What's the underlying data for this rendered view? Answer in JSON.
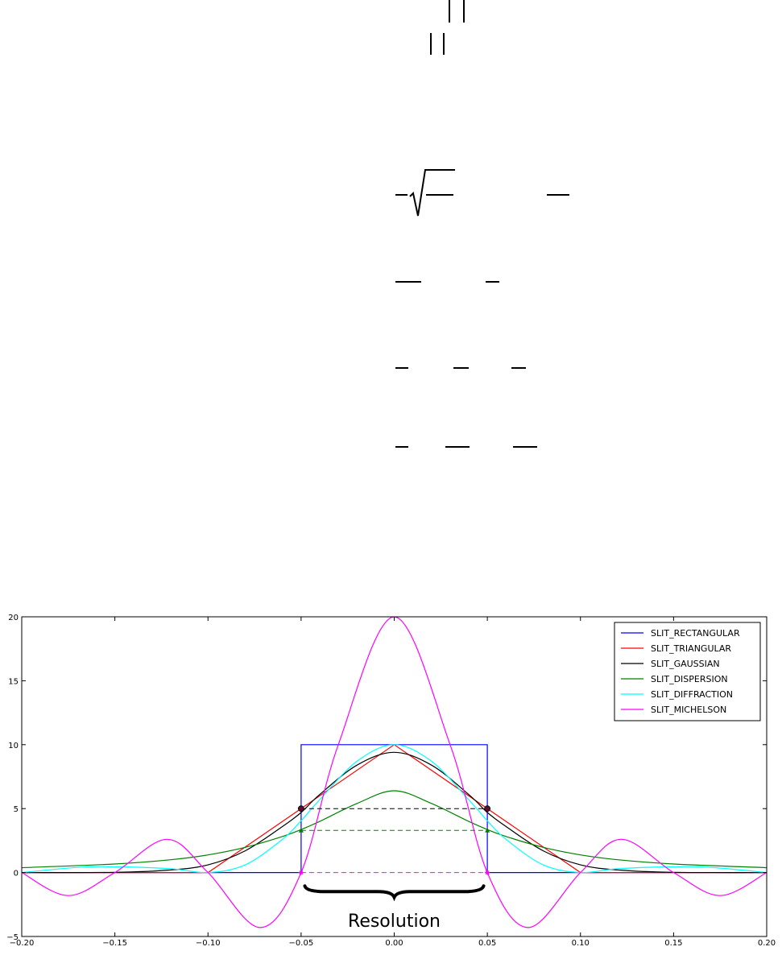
{
  "chart_data": {
    "type": "line",
    "title": "",
    "xlabel": "",
    "ylabel": "",
    "xlim": [
      -0.2,
      0.2
    ],
    "ylim": [
      -5,
      20
    ],
    "xticks": [
      "-0.20",
      "-0.15",
      "-0.10",
      "-0.05",
      "0.00",
      "0.05",
      "0.10",
      "0.15",
      "0.20"
    ],
    "yticks": [
      "-5",
      "0",
      "5",
      "10",
      "15",
      "20"
    ],
    "grid": false,
    "legend_position": "top-right",
    "series": [
      {
        "name": "SLIT_RECTANGULAR",
        "color": "#0000ff",
        "x": [
          -0.2,
          -0.05,
          -0.05,
          0.05,
          0.05,
          0.2
        ],
        "y": [
          0,
          0,
          10,
          10,
          0,
          0
        ]
      },
      {
        "name": "SLIT_TRIANGULAR",
        "color": "#ff0000",
        "x": [
          -0.2,
          -0.1,
          0.0,
          0.1,
          0.2
        ],
        "y": [
          0,
          0,
          10,
          0,
          0
        ]
      },
      {
        "name": "SLIT_GAUSSIAN",
        "color": "#000000",
        "x": [
          -0.2,
          -0.15,
          -0.12,
          -0.1,
          -0.08,
          -0.06,
          -0.05,
          -0.04,
          -0.02,
          0.0,
          0.02,
          0.04,
          0.05,
          0.06,
          0.08,
          0.1,
          0.12,
          0.15,
          0.2
        ],
        "y": [
          0.0,
          0.02,
          0.2,
          0.6,
          1.7,
          3.6,
          4.7,
          6.1,
          8.4,
          9.4,
          8.4,
          6.1,
          4.7,
          3.6,
          1.7,
          0.6,
          0.2,
          0.02,
          0.0
        ]
      },
      {
        "name": "SLIT_DISPERSION",
        "color": "#008000",
        "x": [
          -0.2,
          -0.15,
          -0.12,
          -0.1,
          -0.08,
          -0.06,
          -0.05,
          -0.04,
          -0.02,
          0.0,
          0.02,
          0.04,
          0.05,
          0.06,
          0.08,
          0.1,
          0.12,
          0.15,
          0.2
        ],
        "y": [
          0.38,
          0.67,
          1.0,
          1.38,
          1.97,
          2.82,
          3.36,
          4.0,
          5.4,
          6.4,
          5.4,
          4.0,
          3.36,
          2.82,
          1.97,
          1.38,
          1.0,
          0.67,
          0.38
        ]
      },
      {
        "name": "SLIT_DIFFRACTION",
        "color": "#00ffff",
        "x": [
          -0.2,
          -0.17,
          -0.15,
          -0.12,
          -0.1,
          -0.08,
          -0.06,
          -0.05,
          -0.04,
          -0.02,
          0.0,
          0.02,
          0.04,
          0.05,
          0.06,
          0.08,
          0.1,
          0.12,
          0.15,
          0.17,
          0.2
        ],
        "y": [
          0.0,
          0.4,
          0.45,
          0.3,
          0.0,
          0.6,
          2.6,
          4.05,
          5.7,
          8.7,
          10.0,
          8.7,
          5.7,
          4.05,
          2.6,
          0.6,
          0.0,
          0.3,
          0.45,
          0.4,
          0.0
        ]
      },
      {
        "name": "SLIT_MICHELSON",
        "color": "#ff00ff",
        "x": [
          -0.2,
          -0.175,
          -0.15,
          -0.122,
          -0.1,
          -0.072,
          -0.05,
          -0.03,
          0.0,
          0.03,
          0.05,
          0.072,
          0.1,
          0.122,
          0.15,
          0.175,
          0.2
        ],
        "y": [
          0.0,
          -1.8,
          0.0,
          2.6,
          0.0,
          -4.3,
          0.0,
          10.0,
          20.0,
          10.0,
          0.0,
          -4.3,
          0.0,
          2.6,
          0.0,
          -1.8,
          0.0
        ]
      }
    ],
    "markers": [
      {
        "x": -0.05,
        "y": 5,
        "color": "#000000",
        "shape": "circle"
      },
      {
        "x": 0.05,
        "y": 5,
        "color": "#000000",
        "shape": "circle"
      },
      {
        "x": -0.05,
        "y": 3.3,
        "color": "#008000",
        "shape": "triangle"
      },
      {
        "x": 0.05,
        "y": 3.3,
        "color": "#008000",
        "shape": "triangle"
      },
      {
        "x": -0.05,
        "y": 0,
        "color": "#ff00ff",
        "shape": "star"
      },
      {
        "x": 0.05,
        "y": 0,
        "color": "#ff00ff",
        "shape": "star"
      }
    ],
    "dashed_lines": [
      {
        "y": 5,
        "x_from": -0.05,
        "x_to": 0.05,
        "color": "#000000"
      },
      {
        "y": 3.3,
        "x_from": -0.05,
        "x_to": 0.05,
        "color": "#008000"
      },
      {
        "y": 0,
        "x_from": -0.05,
        "x_to": 0.05,
        "color": "#ff00ff"
      }
    ],
    "annotations": [
      {
        "text": "Resolution"
      }
    ]
  }
}
